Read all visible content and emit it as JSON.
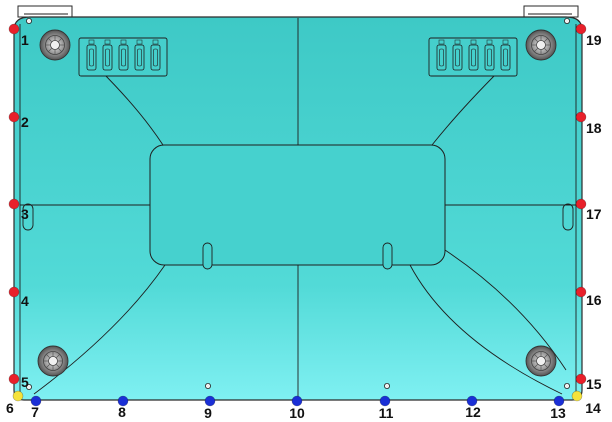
{
  "diagram": {
    "colors": {
      "panel_top": "#3ec9c6",
      "panel_bottom": "#7ff0f2",
      "outline": "#2a2a2a",
      "red_point": "#e8202a",
      "blue_point": "#1a2fd6",
      "yellow_point": "#f5e23a",
      "label": "#111111"
    },
    "points": [
      {
        "id": "1",
        "label": "1",
        "color": "red"
      },
      {
        "id": "2",
        "label": "2",
        "color": "red"
      },
      {
        "id": "3",
        "label": "3",
        "color": "red"
      },
      {
        "id": "4",
        "label": "4",
        "color": "red"
      },
      {
        "id": "5",
        "label": "5",
        "color": "red"
      },
      {
        "id": "6",
        "label": "6",
        "color": "yellow"
      },
      {
        "id": "7",
        "label": "7",
        "color": "blue"
      },
      {
        "id": "8",
        "label": "8",
        "color": "blue"
      },
      {
        "id": "9",
        "label": "9",
        "color": "blue"
      },
      {
        "id": "10",
        "label": "10",
        "color": "blue"
      },
      {
        "id": "11",
        "label": "11",
        "color": "blue"
      },
      {
        "id": "12",
        "label": "12",
        "color": "blue"
      },
      {
        "id": "13",
        "label": "13",
        "color": "blue"
      },
      {
        "id": "14",
        "label": "14",
        "color": "yellow"
      },
      {
        "id": "15",
        "label": "15",
        "color": "red"
      },
      {
        "id": "16",
        "label": "16",
        "color": "red"
      },
      {
        "id": "17",
        "label": "17",
        "color": "red"
      },
      {
        "id": "18",
        "label": "18",
        "color": "red"
      },
      {
        "id": "19",
        "label": "19",
        "color": "red"
      }
    ]
  }
}
